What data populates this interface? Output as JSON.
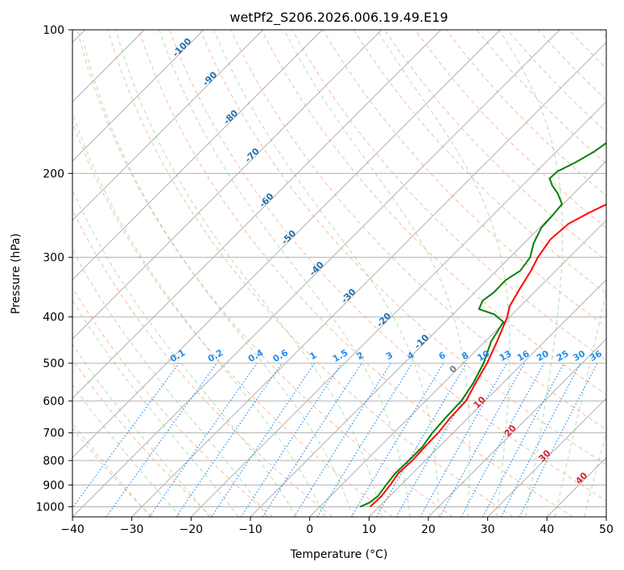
{
  "chart_data": {
    "type": "line",
    "title": "wetPf2_S206.2026.006.19.49.E19",
    "xlabel": "Temperature (°C)",
    "ylabel": "Pressure (hPa)",
    "xlim": [
      -40,
      50
    ],
    "ylim": [
      1050,
      100
    ],
    "x_ticks": [
      -40,
      -30,
      -20,
      -10,
      0,
      10,
      20,
      30,
      40,
      50
    ],
    "x_tick_labels": [
      "−40",
      "−30",
      "−20",
      "−10",
      "0",
      "10",
      "20",
      "30",
      "40",
      "50"
    ],
    "y_ticks": [
      1000,
      900,
      800,
      700,
      600,
      500,
      400,
      300,
      200,
      100
    ],
    "y_tick_labels": [
      "1000",
      "900",
      "800",
      "700",
      "600",
      "500",
      "400",
      "300",
      "200",
      "100"
    ],
    "grid": true,
    "series": [
      {
        "name": "Temperature",
        "color": "#ff0000",
        "points": [
          [
            8.5,
            1000
          ],
          [
            8.6,
            950
          ],
          [
            8.2,
            900
          ],
          [
            7.6,
            850
          ],
          [
            7.8,
            800
          ],
          [
            7.6,
            750
          ],
          [
            7.5,
            700
          ],
          [
            7.0,
            650
          ],
          [
            6.8,
            600
          ],
          [
            5.4,
            550
          ],
          [
            4.0,
            500
          ],
          [
            2.0,
            450
          ],
          [
            -0.4,
            400
          ],
          [
            -1.8,
            380
          ],
          [
            -3.0,
            350
          ],
          [
            -4.2,
            320
          ],
          [
            -5.3,
            300
          ],
          [
            -6.2,
            275
          ],
          [
            -5.8,
            255
          ],
          [
            -4.2,
            242
          ],
          [
            -2.0,
            228
          ],
          [
            1.0,
            214
          ],
          [
            4.0,
            205
          ],
          [
            6.6,
            195
          ],
          [
            8.6,
            185
          ],
          [
            10.8,
            175
          ],
          [
            13.5,
            163
          ],
          [
            16.0,
            152
          ],
          [
            18.6,
            142
          ],
          [
            21.0,
            133
          ],
          [
            23.6,
            124
          ],
          [
            26.6,
            115
          ],
          [
            30.0,
            107
          ],
          [
            34.0,
            100
          ]
        ]
      },
      {
        "name": "Dewpoint",
        "color": "#008000",
        "points": [
          [
            6.8,
            1000
          ],
          [
            7.7,
            980
          ],
          [
            8.0,
            950
          ],
          [
            7.5,
            900
          ],
          [
            7.1,
            850
          ],
          [
            7.2,
            800
          ],
          [
            7.2,
            750
          ],
          [
            6.5,
            700
          ],
          [
            6.2,
            650
          ],
          [
            6.0,
            600
          ],
          [
            5.0,
            550
          ],
          [
            3.4,
            500
          ],
          [
            1.0,
            450
          ],
          [
            -0.2,
            410
          ],
          [
            -3.0,
            395
          ],
          [
            -6.5,
            385
          ],
          [
            -7.3,
            370
          ],
          [
            -6.8,
            355
          ],
          [
            -6.9,
            335
          ],
          [
            -6.0,
            320
          ],
          [
            -6.6,
            300
          ],
          [
            -8.4,
            280
          ],
          [
            -9.7,
            260
          ],
          [
            -9.9,
            245
          ],
          [
            -10.2,
            232
          ],
          [
            -12.8,
            220
          ],
          [
            -15.0,
            212
          ],
          [
            -16.6,
            205
          ],
          [
            -16.5,
            198
          ],
          [
            -15.0,
            190
          ],
          [
            -13.6,
            180
          ],
          [
            -12.4,
            165
          ],
          [
            -11.0,
            150
          ],
          [
            -9.6,
            140
          ],
          [
            -8.0,
            130
          ],
          [
            -5.4,
            121
          ],
          [
            -3.6,
            114
          ],
          [
            -2.4,
            108
          ],
          [
            -1.2,
            100
          ]
        ]
      }
    ],
    "dry_adiabat_labels": [
      "-100",
      "-90",
      "-80",
      "-70",
      "-60",
      "-50",
      "-40",
      "-30",
      "-20",
      "-10"
    ],
    "moist_adiabat_labels": [
      "0",
      "10",
      "20",
      "30",
      "40"
    ],
    "mixing_ratio_labels": [
      "0.1",
      "0.2",
      "0.4",
      "0.6",
      "1",
      "1.5",
      "2",
      "3",
      "4",
      "6",
      "8",
      "10",
      "13",
      "16",
      "20",
      "25",
      "30",
      "36"
    ]
  }
}
